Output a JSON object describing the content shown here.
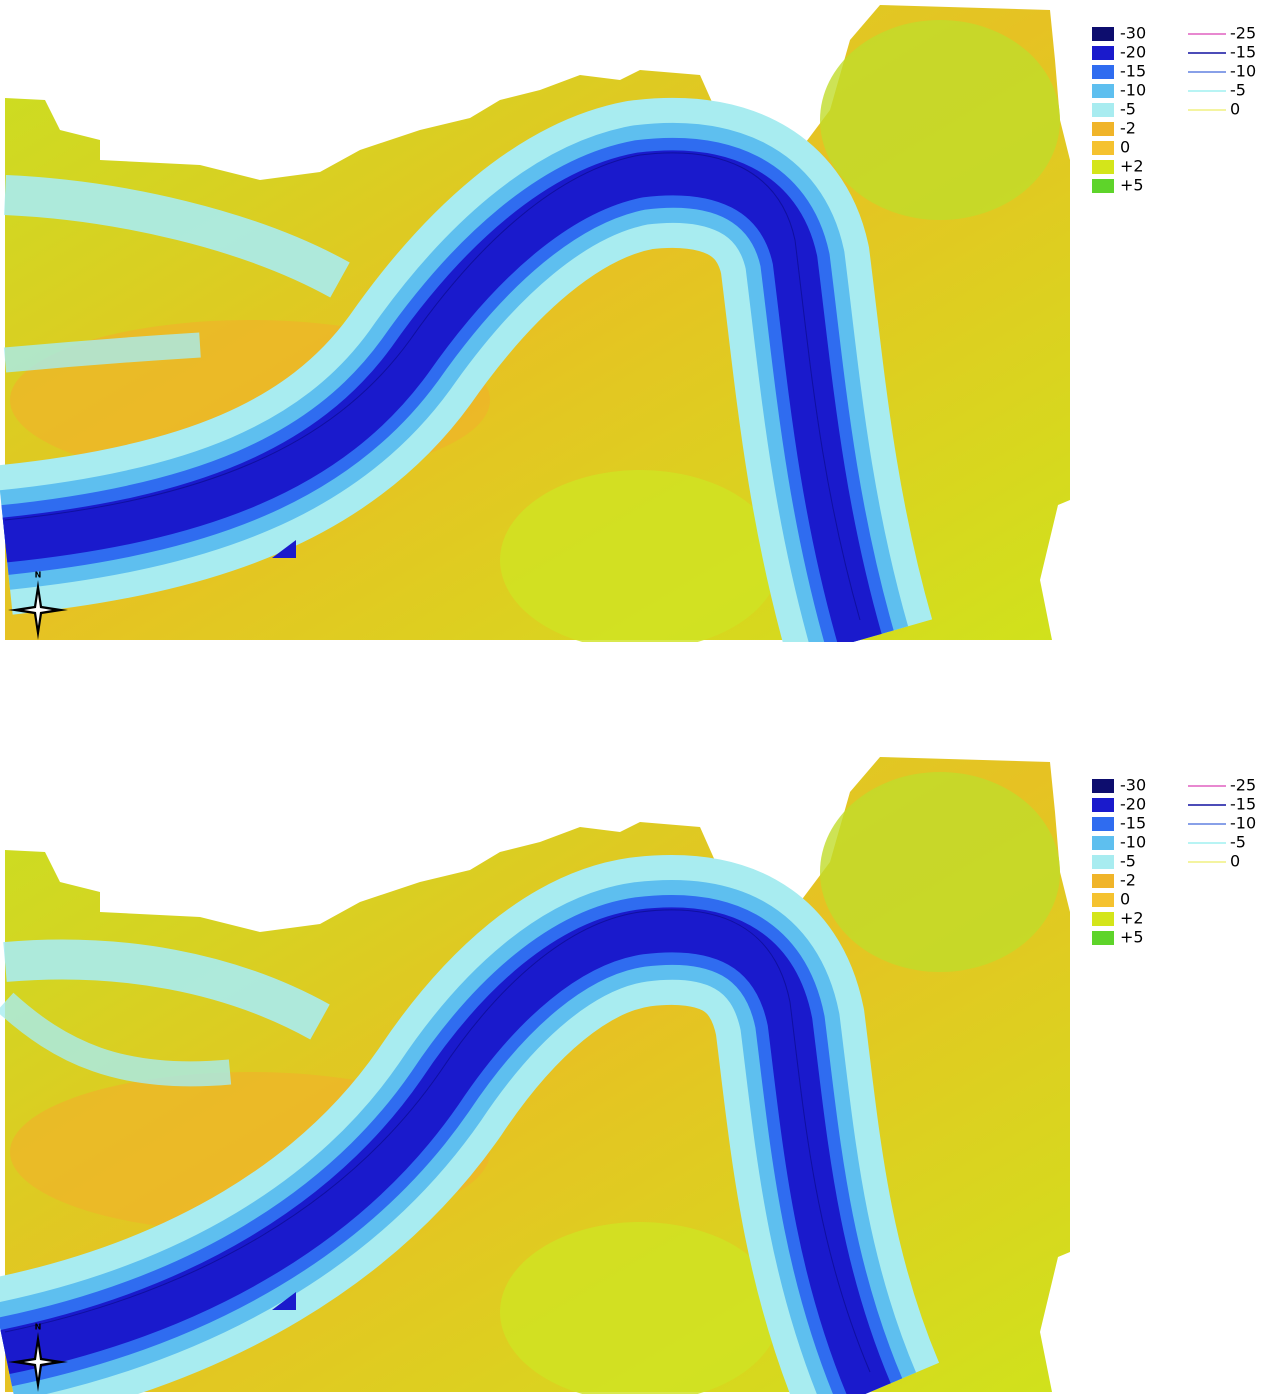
{
  "maps": [
    {
      "north": "N",
      "legend_fill": [
        {
          "label": "-30",
          "color": "#0d0d6e"
        },
        {
          "label": "-20",
          "color": "#1a1acc"
        },
        {
          "label": "-15",
          "color": "#2f6cf0"
        },
        {
          "label": "-10",
          "color": "#5ebfef"
        },
        {
          "label": "-5",
          "color": "#a8ecf0"
        },
        {
          "label": "-2",
          "color": "#f0b429"
        },
        {
          "label": "0",
          "color": "#f5c22f"
        },
        {
          "label": "+2",
          "color": "#d4e51a"
        },
        {
          "label": "+5",
          "color": "#5ed42a"
        }
      ],
      "legend_lines": [
        {
          "label": "-25",
          "color": "#e060c0"
        },
        {
          "label": "-15",
          "color": "#1010a0"
        },
        {
          "label": "-10",
          "color": "#6080e0"
        },
        {
          "label": "-5",
          "color": "#a0f0f0"
        },
        {
          "label": "0",
          "color": "#f0f080"
        }
      ]
    },
    {
      "north": "N",
      "legend_fill": [
        {
          "label": "-30",
          "color": "#0d0d6e"
        },
        {
          "label": "-20",
          "color": "#1a1acc"
        },
        {
          "label": "-15",
          "color": "#2f6cf0"
        },
        {
          "label": "-10",
          "color": "#5ebfef"
        },
        {
          "label": "-5",
          "color": "#a8ecf0"
        },
        {
          "label": "-2",
          "color": "#f0b429"
        },
        {
          "label": "0",
          "color": "#f5c22f"
        },
        {
          "label": "+2",
          "color": "#d4e51a"
        },
        {
          "label": "+5",
          "color": "#5ed42a"
        }
      ],
      "legend_lines": [
        {
          "label": "-25",
          "color": "#e060c0"
        },
        {
          "label": "-15",
          "color": "#1010a0"
        },
        {
          "label": "-10",
          "color": "#6080e0"
        },
        {
          "label": "-5",
          "color": "#a0f0f0"
        },
        {
          "label": "0",
          "color": "#f0f080"
        }
      ]
    }
  ]
}
